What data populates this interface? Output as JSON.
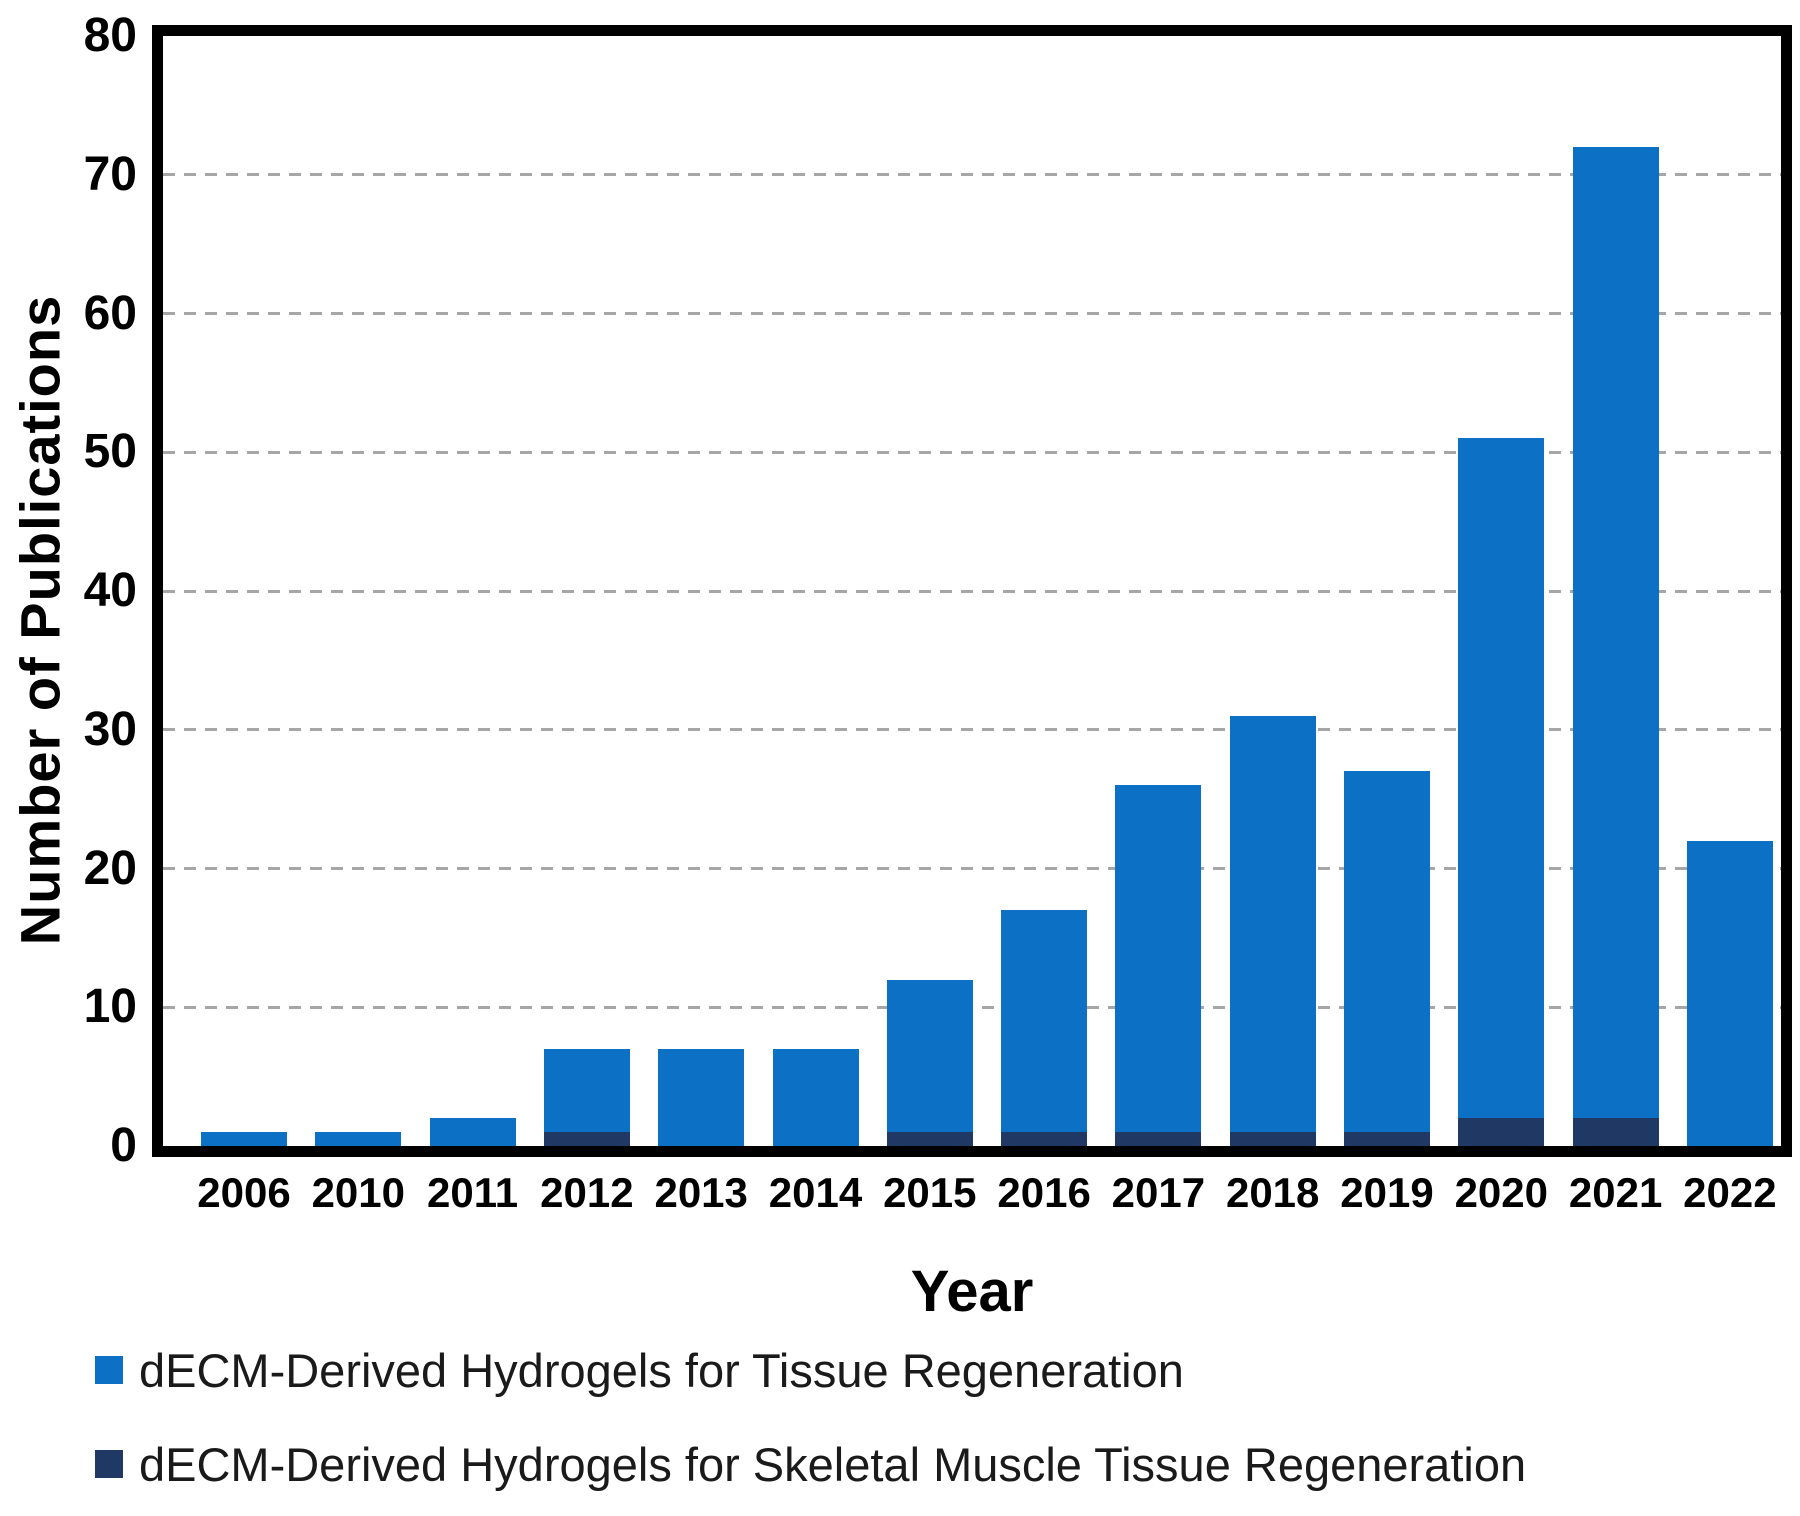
{
  "chart_data": {
    "type": "bar",
    "title": "",
    "categories": [
      "2006",
      "2010",
      "2011",
      "2012",
      "2013",
      "2014",
      "2015",
      "2016",
      "2017",
      "2018",
      "2019",
      "2020",
      "2021",
      "2022"
    ],
    "series": [
      {
        "name": "dECM-Derived Hydrogels for Tissue Regeneration",
        "color": "#0c71c4",
        "values": [
          1,
          1,
          2,
          7,
          7,
          7,
          12,
          17,
          26,
          31,
          27,
          51,
          72,
          22
        ]
      },
      {
        "name": "dECM-Derived Hydrogels for Skeletal Muscle Tissue Regeneration",
        "color": "#1f3864",
        "values": [
          0,
          0,
          0,
          1,
          0,
          0,
          1,
          1,
          1,
          1,
          1,
          2,
          2,
          0
        ]
      }
    ],
    "render_style": "second series drawn as overlay segment at bottom of total bars",
    "xlabel": "Year",
    "ylabel": "Number of Publications",
    "ylim": [
      0,
      80
    ],
    "y_ticks": [
      0,
      10,
      20,
      30,
      40,
      50,
      60,
      70,
      80
    ],
    "grid": "horizontal dashed gray",
    "gridline_color": "#a6a6a6",
    "axis_border_color": "#000000",
    "legend_position": "bottom-left"
  }
}
